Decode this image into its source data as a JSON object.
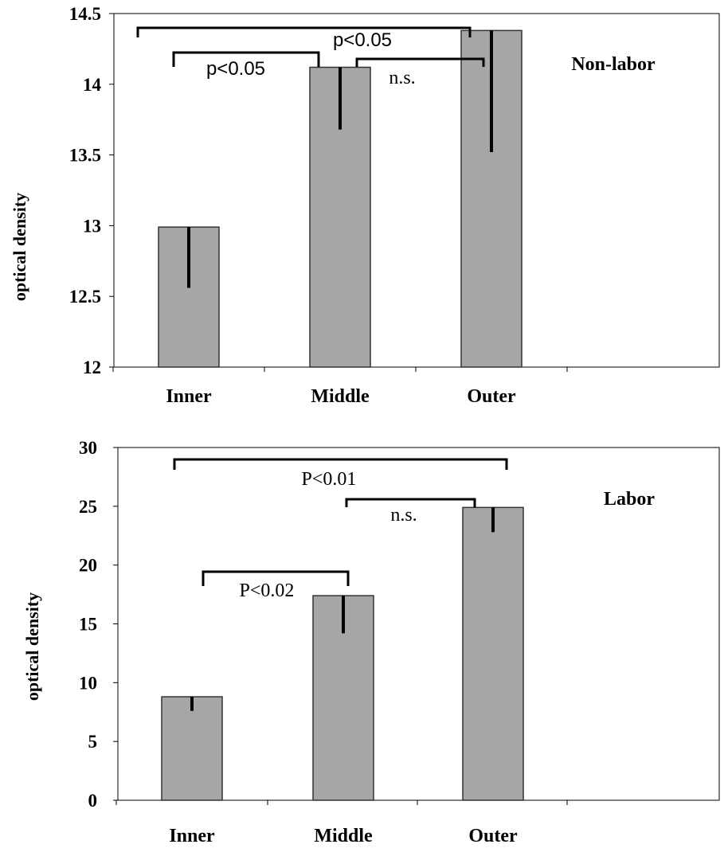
{
  "chart_data": [
    {
      "type": "bar",
      "panel_label": "Non-labor",
      "ylabel": "optical density",
      "categories": [
        "Inner",
        "Middle",
        "Outer"
      ],
      "values": [
        12.99,
        14.12,
        14.38
      ],
      "error_lower": [
        12.56,
        13.68,
        13.52
      ],
      "ylim": [
        12,
        14.5
      ],
      "yticks": [
        "12",
        "12.5",
        "13",
        "13.5",
        "14",
        "14.5"
      ],
      "bar_color": "#a6a6a6",
      "comparisons": [
        {
          "from": "Inner",
          "to": "Middle",
          "label": "p<0.05"
        },
        {
          "from": "Middle",
          "to": "Outer",
          "label": "n.s."
        },
        {
          "from": "Inner",
          "to": "Outer",
          "label": "p<0.05"
        }
      ]
    },
    {
      "type": "bar",
      "panel_label": "Labor",
      "ylabel": "optical density",
      "categories": [
        "Inner",
        "Middle",
        "Outer"
      ],
      "values": [
        8.8,
        17.4,
        24.9
      ],
      "error_lower": [
        7.6,
        14.2,
        22.8
      ],
      "ylim": [
        0,
        30
      ],
      "yticks": [
        "0",
        "5",
        "10",
        "15",
        "20",
        "25",
        "30"
      ],
      "bar_color": "#a6a6a6",
      "comparisons": [
        {
          "from": "Inner",
          "to": "Middle",
          "label": "P<0.02"
        },
        {
          "from": "Middle",
          "to": "Outer",
          "label": "n.s."
        },
        {
          "from": "Inner",
          "to": "Outer",
          "label": "P<0.01"
        }
      ]
    }
  ]
}
